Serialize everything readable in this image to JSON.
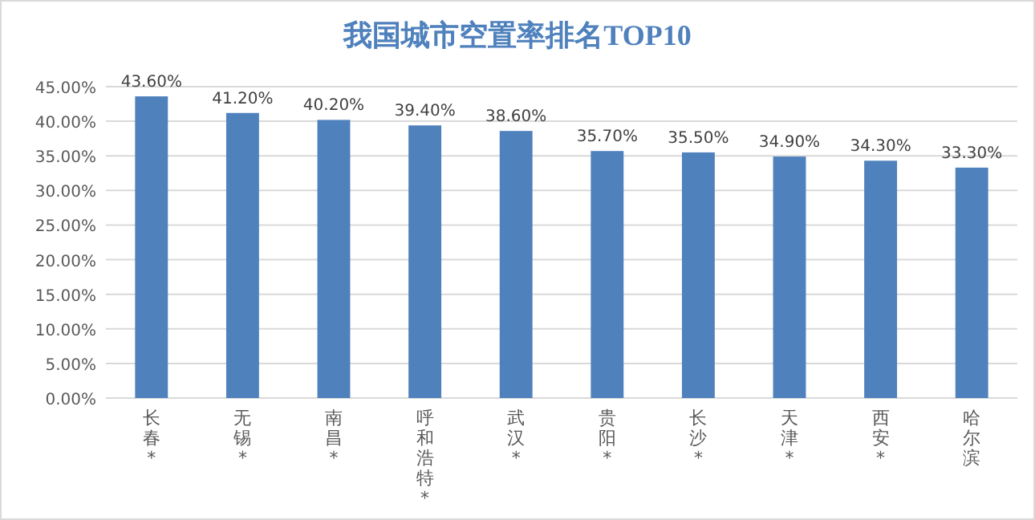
{
  "chart_data": {
    "type": "bar",
    "title": "我国城市空置率排名TOP10",
    "categories": [
      "长春*",
      "无锡*",
      "南昌*",
      "呼和浩特*",
      "武汉*",
      "贵阳*",
      "长沙*",
      "天津*",
      "西安*",
      "哈尔滨"
    ],
    "series": [
      {
        "color": "#4f81bd",
        "values": [
          43.6,
          41.2,
          40.2,
          39.4,
          38.6,
          35.7,
          35.5,
          34.9,
          34.3,
          33.3
        ]
      }
    ],
    "value_labels": [
      "43.60%",
      "41.20%",
      "40.20%",
      "39.40%",
      "38.60%",
      "35.70%",
      "35.50%",
      "34.90%",
      "34.30%",
      "33.30%"
    ],
    "ylim": [
      0,
      45
    ],
    "yticks": [
      {
        "value": 0,
        "label": "0.00%"
      },
      {
        "value": 5,
        "label": "5.00%"
      },
      {
        "value": 10,
        "label": "10.00%"
      },
      {
        "value": 15,
        "label": "15.00%"
      },
      {
        "value": 20,
        "label": "20.00%"
      },
      {
        "value": 25,
        "label": "25.00%"
      },
      {
        "value": 30,
        "label": "30.00%"
      },
      {
        "value": 35,
        "label": "35.00%"
      },
      {
        "value": 40,
        "label": "40.00%"
      },
      {
        "value": 45,
        "label": "45.00%"
      }
    ],
    "grid": "y"
  }
}
